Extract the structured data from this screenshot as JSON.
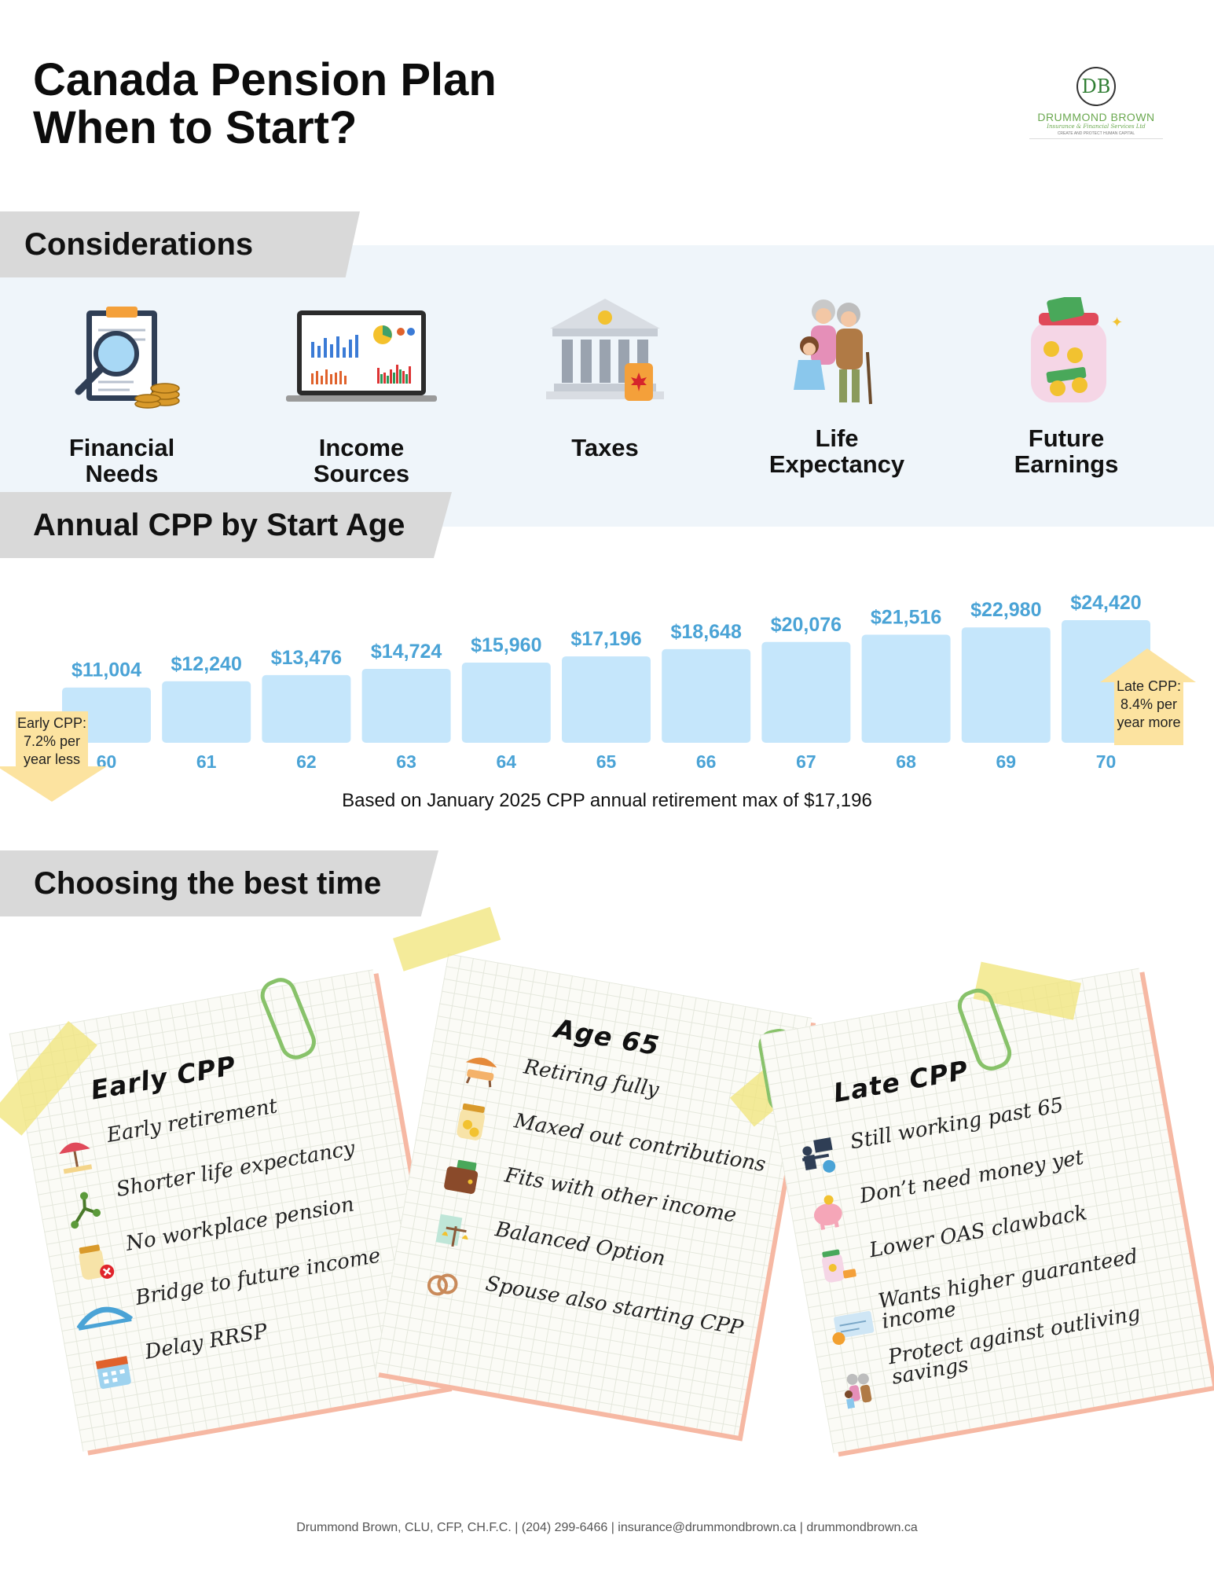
{
  "header": {
    "title_line1": "Canada Pension Plan",
    "title_line2": "When to Start?"
  },
  "logo": {
    "mark": "DB",
    "name": "DRUMMOND BROWN",
    "subtitle": "Insurance & Financial Services Ltd",
    "tagline": "CREATE AND PROTECT HUMAN CAPITAL"
  },
  "considerations": {
    "heading": "Considerations",
    "items": [
      {
        "label": "Financial Needs",
        "icon": "clipboard-magnifier-icon"
      },
      {
        "label": "Income Sources",
        "icon": "laptop-charts-icon"
      },
      {
        "label": "Taxes",
        "icon": "government-building-icon"
      },
      {
        "label": "Life Expectancy",
        "icon": "grandparents-icon"
      },
      {
        "label": "Future Earnings",
        "icon": "money-jar-icon"
      }
    ]
  },
  "chart_section": {
    "heading": "Annual CPP by Start Age",
    "footnote": "Based on January 2025 CPP annual retirement max of $17,196"
  },
  "chart_data": {
    "type": "bar",
    "categories": [
      "60",
      "61",
      "62",
      "63",
      "64",
      "65",
      "66",
      "67",
      "68",
      "69",
      "70"
    ],
    "values": [
      11004,
      12240,
      13476,
      14724,
      15960,
      17196,
      18648,
      20076,
      21516,
      22980,
      24420
    ],
    "labels": [
      "$11,004",
      "$12,240",
      "$13,476",
      "$14,724",
      "$15,960",
      "$17,196",
      "$18,648",
      "$20,076",
      "$21,516",
      "$22,980",
      "$24,420"
    ],
    "title": "",
    "xlabel": "",
    "ylabel": "",
    "colors": {
      "bar": "#c5e6fb",
      "label": "#4aa3d6",
      "callout": "#fce3a0"
    },
    "annotations": {
      "early": [
        "Early CPP:",
        "7.2% per",
        "year less"
      ],
      "late": [
        "Late CPP:",
        "8.4% per",
        "year more"
      ]
    }
  },
  "choosing": {
    "heading": "Choosing the best time",
    "cards": [
      {
        "title": "Early CPP",
        "items": [
          {
            "text": "Early retirement",
            "icon": "beach-icon"
          },
          {
            "text": "Shorter life expectancy",
            "icon": "branch-icon"
          },
          {
            "text": "No workplace pension",
            "icon": "empty-jar-icon"
          },
          {
            "text": "Bridge to future income",
            "icon": "bridge-icon"
          },
          {
            "text": "Delay RRSP",
            "icon": "calendar-icon"
          }
        ]
      },
      {
        "title": "Age 65",
        "items": [
          {
            "text": "Retiring fully",
            "icon": "beach-chair-icon"
          },
          {
            "text": "Maxed out contributions",
            "icon": "full-jar-icon"
          },
          {
            "text": "Fits with other income",
            "icon": "wallet-icon"
          },
          {
            "text": "Balanced Option",
            "icon": "scale-icon"
          },
          {
            "text": "Spouse also starting CPP",
            "icon": "rings-icon"
          }
        ]
      },
      {
        "title": "Late CPP",
        "items": [
          {
            "text": "Still working past 65",
            "icon": "worker-icon"
          },
          {
            "text": "Don’t need money yet",
            "icon": "piggy-bank-icon"
          },
          {
            "text": "Lower OAS clawback",
            "icon": "jar-tag-icon"
          },
          {
            "text": "Wants higher guaranteed income",
            "icon": "cheque-icon"
          },
          {
            "text": "Protect against outliving savings",
            "icon": "family-icon"
          }
        ]
      }
    ]
  },
  "footer": {
    "contact": "Drummond Brown, CLU, CFP, CH.F.C. | (204) 299-6466 | insurance@drummondbrown.ca | drummondbrown.ca"
  }
}
